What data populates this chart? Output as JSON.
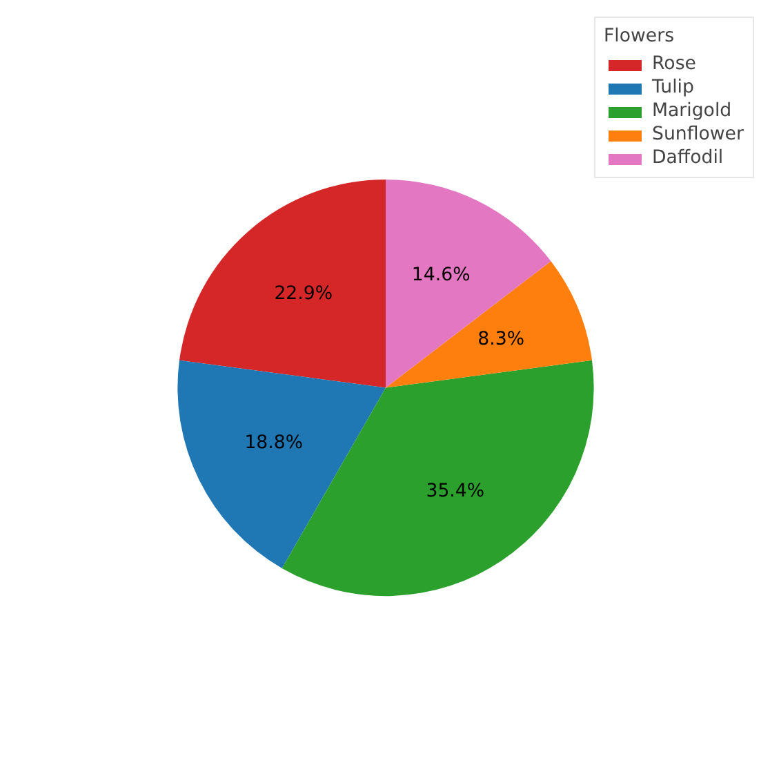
{
  "chart_data": {
    "type": "pie",
    "legend_title": "Flowers",
    "categories": [
      "Rose",
      "Tulip",
      "Marigold",
      "Sunflower",
      "Daffodil"
    ],
    "values": [
      22.9,
      18.8,
      35.4,
      8.3,
      14.6
    ],
    "colors": [
      "#d62728",
      "#1f77b4",
      "#2ca02c",
      "#ff7f0e",
      "#e377c2"
    ],
    "value_labels": [
      "22.9%",
      "18.8%",
      "35.4%",
      "8.3%",
      "14.6%"
    ],
    "legend": "top right"
  }
}
